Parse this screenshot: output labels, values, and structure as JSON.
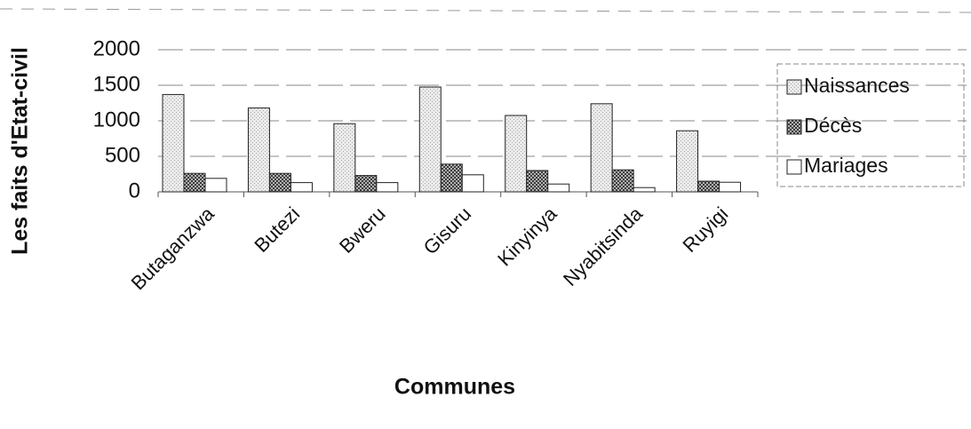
{
  "chart_data": {
    "type": "bar",
    "y_label": "Les faits d'Etat-civil",
    "x_label": "Communes",
    "categories": [
      "Butaganzwa",
      "Butezi",
      "Bweru",
      "Gisuru",
      "Kinyinya",
      "Nyabitsinda",
      "Ruyigi"
    ],
    "series": [
      {
        "name": "Naissances",
        "color": "#d8d8d8",
        "values": [
          1370,
          1180,
          960,
          1475,
          1075,
          1240,
          860
        ]
      },
      {
        "name": "Décès",
        "color": "#3a3a3a",
        "values": [
          260,
          260,
          230,
          390,
          300,
          310,
          150
        ]
      },
      {
        "name": "Mariages",
        "color": "#ffffff",
        "values": [
          190,
          130,
          130,
          240,
          110,
          60,
          135
        ]
      }
    ],
    "ylim": [
      0,
      2000
    ],
    "yticks": [
      0,
      500,
      1000,
      1500,
      2000
    ],
    "grid": true,
    "legend": "right"
  }
}
